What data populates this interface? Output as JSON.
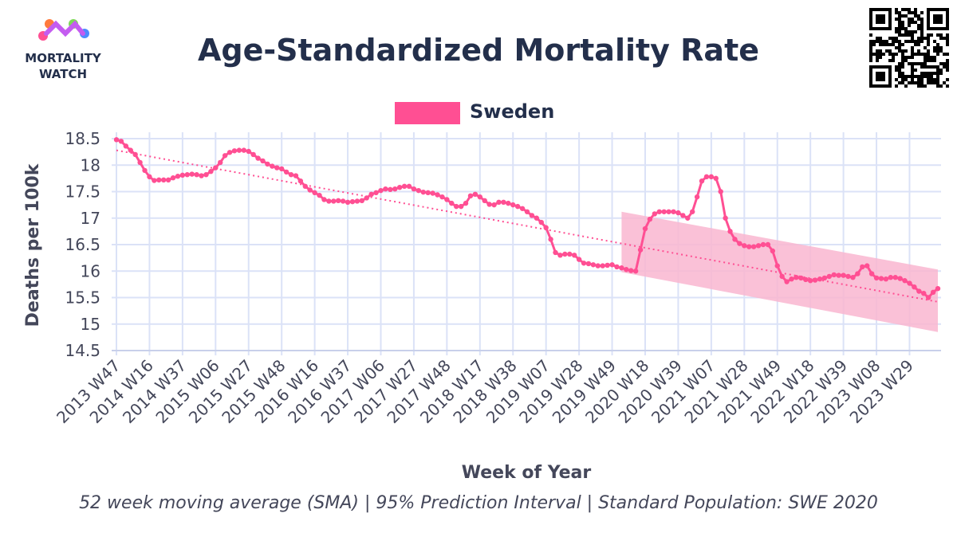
{
  "logo": {
    "line1": "MORTALITY",
    "line2": "WATCH"
  },
  "chart_data": {
    "type": "line",
    "title": "Age-Standardized Mortality Rate",
    "x_label": "Week of Year",
    "y_label": "Deaths per 100k",
    "footnote": "52 week moving average (SMA) | 95% Prediction Interval | Standard Population: SWE 2020",
    "grid": true,
    "legend_position": "top",
    "ylim": [
      14.5,
      18.5
    ],
    "yticks": [
      18.5,
      18,
      17.5,
      17,
      16.5,
      16,
      15.5,
      15,
      14.5
    ],
    "categories": [
      "2013 W47",
      null,
      null,
      null,
      null,
      null,
      null,
      "2014 W16",
      null,
      null,
      null,
      null,
      null,
      null,
      "2014 W37",
      null,
      null,
      null,
      null,
      null,
      null,
      "2015 W06",
      null,
      null,
      null,
      null,
      null,
      null,
      "2015 W27",
      null,
      null,
      null,
      null,
      null,
      null,
      "2015 W48",
      null,
      null,
      null,
      null,
      null,
      null,
      "2016 W16",
      null,
      null,
      null,
      null,
      null,
      null,
      "2016 W37",
      null,
      null,
      null,
      null,
      null,
      null,
      "2017 W06",
      null,
      null,
      null,
      null,
      null,
      null,
      "2017 W27",
      null,
      null,
      null,
      null,
      null,
      null,
      "2017 W48",
      null,
      null,
      null,
      null,
      null,
      null,
      "2018 W17",
      null,
      null,
      null,
      null,
      null,
      null,
      "2018 W38",
      null,
      null,
      null,
      null,
      null,
      null,
      "2019 W07",
      null,
      null,
      null,
      null,
      null,
      null,
      "2019 W28",
      null,
      null,
      null,
      null,
      null,
      null,
      "2019 W49",
      null,
      null,
      null,
      null,
      null,
      null,
      "2020 W18",
      null,
      null,
      null,
      null,
      null,
      null,
      "2020 W39",
      null,
      null,
      null,
      null,
      null,
      null,
      "2021 W07",
      null,
      null,
      null,
      null,
      null,
      null,
      "2021 W28",
      null,
      null,
      null,
      null,
      null,
      null,
      "2021 W49",
      null,
      null,
      null,
      null,
      null,
      null,
      "2022 W18",
      null,
      null,
      null,
      null,
      null,
      null,
      "2022 W39",
      null,
      null,
      null,
      null,
      null,
      null,
      "2023 W08",
      null,
      null,
      null,
      null,
      null,
      null,
      "2023 W29",
      null,
      null,
      null,
      null,
      null,
      null
    ],
    "series": [
      {
        "name": "Sweden",
        "color": "#ff4f93",
        "values": [
          18.48,
          18.45,
          18.36,
          18.28,
          18.2,
          18.05,
          17.9,
          17.78,
          17.71,
          17.72,
          17.72,
          17.72,
          17.76,
          17.79,
          17.81,
          17.82,
          17.83,
          17.82,
          17.8,
          17.82,
          17.88,
          17.95,
          18.05,
          18.18,
          18.24,
          18.27,
          18.28,
          18.28,
          18.26,
          18.2,
          18.13,
          18.08,
          18.02,
          17.98,
          17.95,
          17.93,
          17.87,
          17.82,
          17.8,
          17.7,
          17.6,
          17.53,
          17.48,
          17.43,
          17.35,
          17.32,
          17.32,
          17.33,
          17.32,
          17.3,
          17.31,
          17.32,
          17.33,
          17.38,
          17.45,
          17.48,
          17.52,
          17.55,
          17.54,
          17.55,
          17.58,
          17.6,
          17.6,
          17.55,
          17.52,
          17.49,
          17.48,
          17.47,
          17.44,
          17.4,
          17.35,
          17.28,
          17.22,
          17.22,
          17.28,
          17.42,
          17.45,
          17.4,
          17.33,
          17.26,
          17.25,
          17.3,
          17.3,
          17.28,
          17.25,
          17.22,
          17.18,
          17.12,
          17.05,
          17.0,
          16.92,
          16.82,
          16.6,
          16.35,
          16.3,
          16.32,
          16.32,
          16.3,
          16.22,
          16.15,
          16.14,
          16.12,
          16.1,
          16.1,
          16.11,
          16.12,
          16.08,
          16.06,
          16.03,
          16.01,
          16.0,
          16.4,
          16.8,
          16.98,
          17.08,
          17.12,
          17.12,
          17.12,
          17.12,
          17.1,
          17.05,
          17.0,
          17.12,
          17.4,
          17.7,
          17.78,
          17.78,
          17.75,
          17.5,
          17.0,
          16.75,
          16.6,
          16.52,
          16.48,
          16.46,
          16.46,
          16.48,
          16.5,
          16.5,
          16.38,
          16.1,
          15.9,
          15.8,
          15.85,
          15.88,
          15.87,
          15.84,
          15.82,
          15.83,
          15.85,
          15.87,
          15.9,
          15.93,
          15.92,
          15.92,
          15.9,
          15.88,
          15.95,
          16.08,
          16.1,
          15.95,
          15.87,
          15.86,
          15.85,
          15.88,
          15.88,
          15.86,
          15.82,
          15.77,
          15.7,
          15.62,
          15.58,
          15.5,
          15.6,
          15.67
        ]
      }
    ],
    "trend": {
      "color": "#ff4f93",
      "values": [
        18.28,
        15.42
      ]
    },
    "prediction_interval": {
      "color": "#f9b6d0",
      "start": 107,
      "upper": [
        17.12,
        16.03
      ],
      "lower": [
        15.98,
        14.85
      ]
    }
  }
}
